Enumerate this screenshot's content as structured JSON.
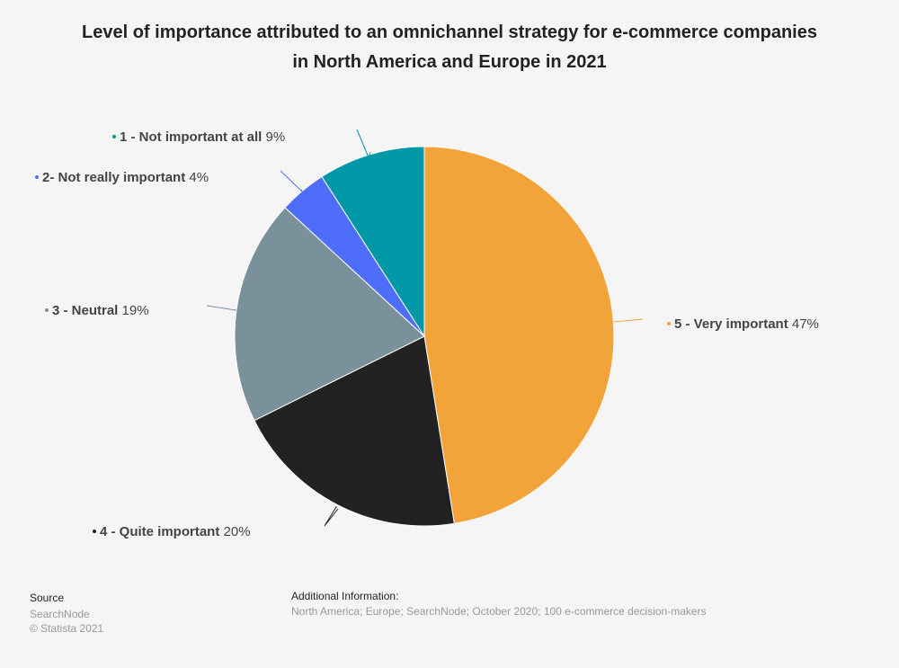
{
  "chart_data": {
    "type": "pie",
    "title": "Level of importance attributed to an omnichannel strategy for e-commerce companies in North America and Europe in 2021",
    "unit": "%",
    "slices": [
      {
        "label": "5 - Very important",
        "value": 47,
        "display": "47%",
        "color": "#f2a43a"
      },
      {
        "label": "4 - Quite important",
        "value": 20,
        "display": "20%",
        "color": "#222222"
      },
      {
        "label": "3 - Neutral",
        "value": 19,
        "display": "19%",
        "color": "#7a909b"
      },
      {
        "label": "2- Not really important",
        "value": 4,
        "display": "4%",
        "color": "#4f6dfb"
      },
      {
        "label": "1 - Not important at all",
        "value": 9,
        "display": "9%",
        "color": "#0097a7"
      }
    ]
  },
  "footer": {
    "source_heading": "Source",
    "source_lines": [
      "SearchNode",
      "© Statista 2021"
    ],
    "additional_heading": "Additional Information:",
    "additional_text": "North America; Europe; SearchNode; October 2020; 100 e-commerce decision-makers"
  }
}
